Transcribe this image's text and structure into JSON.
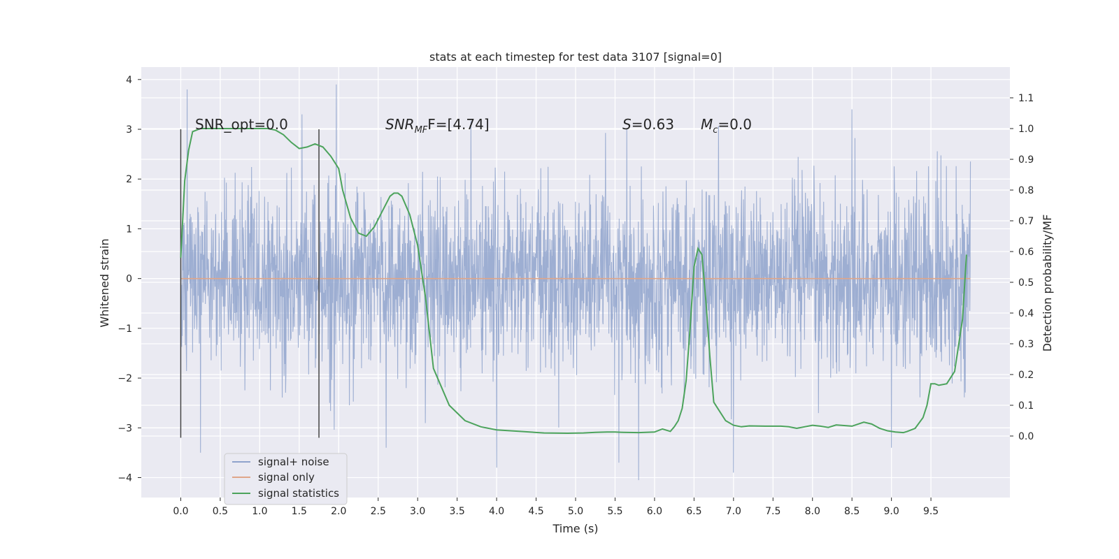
{
  "chart_data": {
    "type": "line",
    "title": "stats at each timestep for test data 3107 [signal=0]",
    "xlabel": "Time (s)",
    "ylabel_left": "Whitened strain",
    "ylabel_right": "Detection probability/MF",
    "xlim": [
      -0.5,
      10.5
    ],
    "ylim_left": [
      -4.4,
      4.25
    ],
    "ylim_right": [
      -0.2,
      1.2
    ],
    "x_ticks": [
      "0.0",
      "0.5",
      "1.0",
      "1.5",
      "2.0",
      "2.5",
      "3.0",
      "3.5",
      "4.0",
      "4.5",
      "5.0",
      "5.5",
      "6.0",
      "6.5",
      "7.0",
      "7.5",
      "8.0",
      "8.5",
      "9.0",
      "9.5"
    ],
    "y_ticks_left": [
      "4",
      "3",
      "2",
      "1",
      "0",
      "−1",
      "−2",
      "−3",
      "−4"
    ],
    "y_ticks_right": [
      "1.1",
      "1.0",
      "0.9",
      "0.8",
      "0.7",
      "0.6",
      "0.5",
      "0.4",
      "0.3",
      "0.2",
      "0.1",
      "0.0"
    ],
    "grid": true,
    "legend_position": "bottom-left",
    "annotations": {
      "snr_opt": "SNR_opt=0.0",
      "snr_mf_italic": "SNR",
      "snr_mf_sub": "MF",
      "snr_mf_value": "F=[4.74]",
      "s_italic": "S",
      "s_value": "=0.63",
      "mc_italic": "M",
      "mc_sub": "c",
      "mc_value": "=0.0"
    },
    "vertical_markers": [
      {
        "x": 0.0,
        "y_range": [
          -3.2,
          3.0
        ]
      },
      {
        "x": 1.75,
        "y_range": [
          -3.2,
          3.0
        ]
      }
    ],
    "series": [
      {
        "name": "signal+ noise",
        "color": "#8fa3cc",
        "axis": "left",
        "noise_std": 0.9,
        "x_range": [
          0.0,
          10.0
        ],
        "notable_peaks": [
          [
            0.08,
            3.8
          ],
          [
            1.97,
            3.9
          ],
          [
            4.0,
            -3.8
          ],
          [
            5.55,
            -3.7
          ],
          [
            5.8,
            -4.05
          ],
          [
            7.0,
            -3.9
          ],
          [
            8.5,
            3.4
          ],
          [
            0.25,
            -3.5
          ],
          [
            2.6,
            -3.4
          ],
          [
            9.0,
            -3.4
          ]
        ]
      },
      {
        "name": "signal only",
        "color": "#e0a689",
        "axis": "left",
        "x": [
          0.0,
          10.0
        ],
        "y": [
          0.0,
          0.0
        ]
      },
      {
        "name": "signal statistics",
        "color": "#4ca35c",
        "axis": "right",
        "x": [
          0.0,
          0.05,
          0.1,
          0.15,
          0.25,
          0.4,
          0.6,
          0.8,
          1.0,
          1.1,
          1.2,
          1.3,
          1.4,
          1.5,
          1.6,
          1.7,
          1.8,
          1.9,
          2.0,
          2.05,
          2.15,
          2.25,
          2.35,
          2.45,
          2.55,
          2.65,
          2.7,
          2.75,
          2.8,
          2.9,
          3.0,
          3.1,
          3.2,
          3.4,
          3.6,
          3.8,
          4.0,
          4.3,
          4.6,
          4.9,
          5.1,
          5.25,
          5.4,
          5.5,
          5.6,
          5.8,
          6.0,
          6.1,
          6.2,
          6.25,
          6.3,
          6.35,
          6.4,
          6.45,
          6.5,
          6.55,
          6.6,
          6.65,
          6.7,
          6.75,
          6.8,
          6.9,
          7.0,
          7.1,
          7.2,
          7.4,
          7.6,
          7.7,
          7.8,
          8.0,
          8.1,
          8.2,
          8.3,
          8.5,
          8.65,
          8.75,
          8.85,
          8.95,
          9.05,
          9.15,
          9.2,
          9.3,
          9.4,
          9.45,
          9.5,
          9.55,
          9.6,
          9.7,
          9.8,
          9.9,
          9.95
        ],
        "y": [
          0.58,
          0.83,
          0.93,
          0.99,
          1.0,
          1.0,
          1.0,
          1.0,
          1.0,
          1.0,
          0.995,
          0.98,
          0.955,
          0.935,
          0.94,
          0.95,
          0.94,
          0.91,
          0.87,
          0.8,
          0.71,
          0.66,
          0.65,
          0.68,
          0.73,
          0.78,
          0.79,
          0.79,
          0.78,
          0.72,
          0.62,
          0.45,
          0.22,
          0.1,
          0.05,
          0.03,
          0.02,
          0.015,
          0.01,
          0.009,
          0.01,
          0.012,
          0.013,
          0.013,
          0.012,
          0.011,
          0.013,
          0.023,
          0.015,
          0.03,
          0.05,
          0.09,
          0.18,
          0.35,
          0.55,
          0.61,
          0.59,
          0.44,
          0.26,
          0.11,
          0.09,
          0.05,
          0.035,
          0.03,
          0.033,
          0.032,
          0.032,
          0.03,
          0.025,
          0.035,
          0.032,
          0.028,
          0.036,
          0.032,
          0.045,
          0.039,
          0.025,
          0.017,
          0.013,
          0.011,
          0.015,
          0.025,
          0.06,
          0.1,
          0.17,
          0.17,
          0.165,
          0.17,
          0.21,
          0.38,
          0.59
        ]
      }
    ]
  }
}
